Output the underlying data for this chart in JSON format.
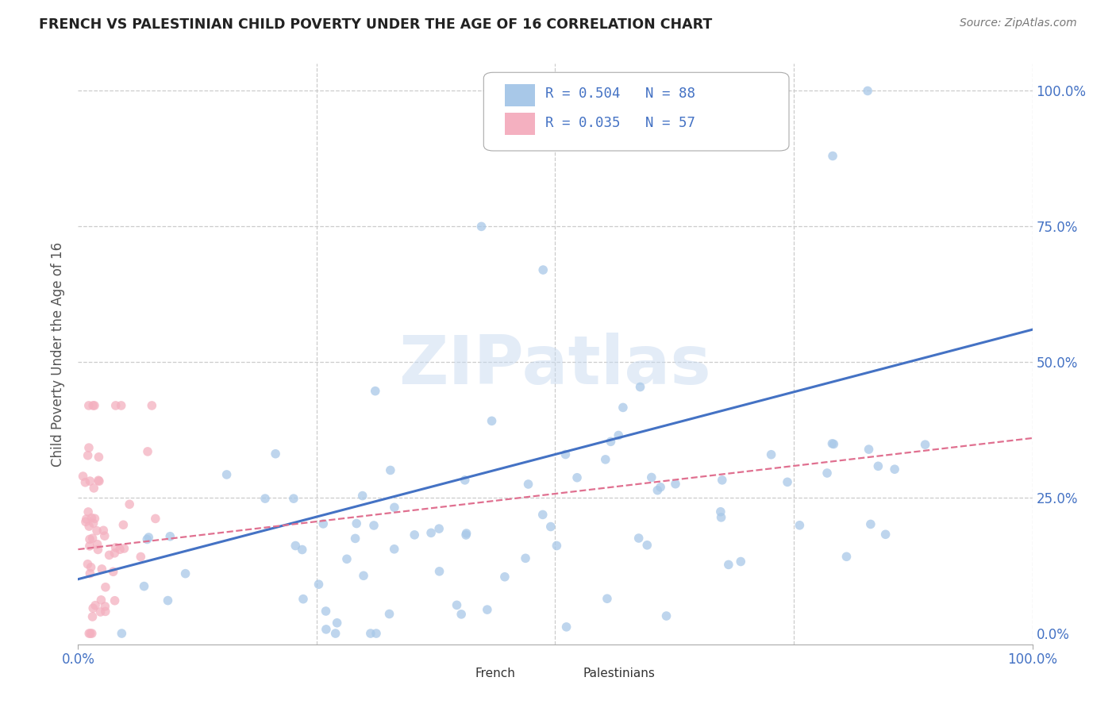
{
  "title": "FRENCH VS PALESTINIAN CHILD POVERTY UNDER THE AGE OF 16 CORRELATION CHART",
  "source": "Source: ZipAtlas.com",
  "ylabel": "Child Poverty Under the Age of 16",
  "xlim": [
    0,
    1
  ],
  "ylim": [
    -0.02,
    1.05
  ],
  "french_R": 0.504,
  "french_N": 88,
  "palestinian_R": 0.035,
  "palestinian_N": 57,
  "french_color": "#a8c8e8",
  "french_line_color": "#4472c4",
  "palestinian_color": "#f4b0c0",
  "palestinian_line_color": "#e07090",
  "background_color": "#ffffff",
  "grid_color": "#cccccc",
  "french_line_x0": 0.0,
  "french_line_y0": 0.1,
  "french_line_x1": 1.0,
  "french_line_y1": 0.56,
  "pal_line_x0": 0.0,
  "pal_line_y0": 0.155,
  "pal_line_x1": 1.0,
  "pal_line_y1": 0.36,
  "ytick_positions": [
    0,
    0.25,
    0.5,
    0.75,
    1.0
  ],
  "ytick_labels": [
    "0.0%",
    "25.0%",
    "50.0%",
    "75.0%",
    "100.0%"
  ],
  "xtick_positions": [
    0.0,
    1.0
  ],
  "xtick_labels": [
    "0.0%",
    "100.0%"
  ],
  "legend_french_text": "R = 0.504   N = 88",
  "legend_pal_text": "R = 0.035   N = 57",
  "bottom_legend_french": "French",
  "bottom_legend_pal": "Palestinians"
}
